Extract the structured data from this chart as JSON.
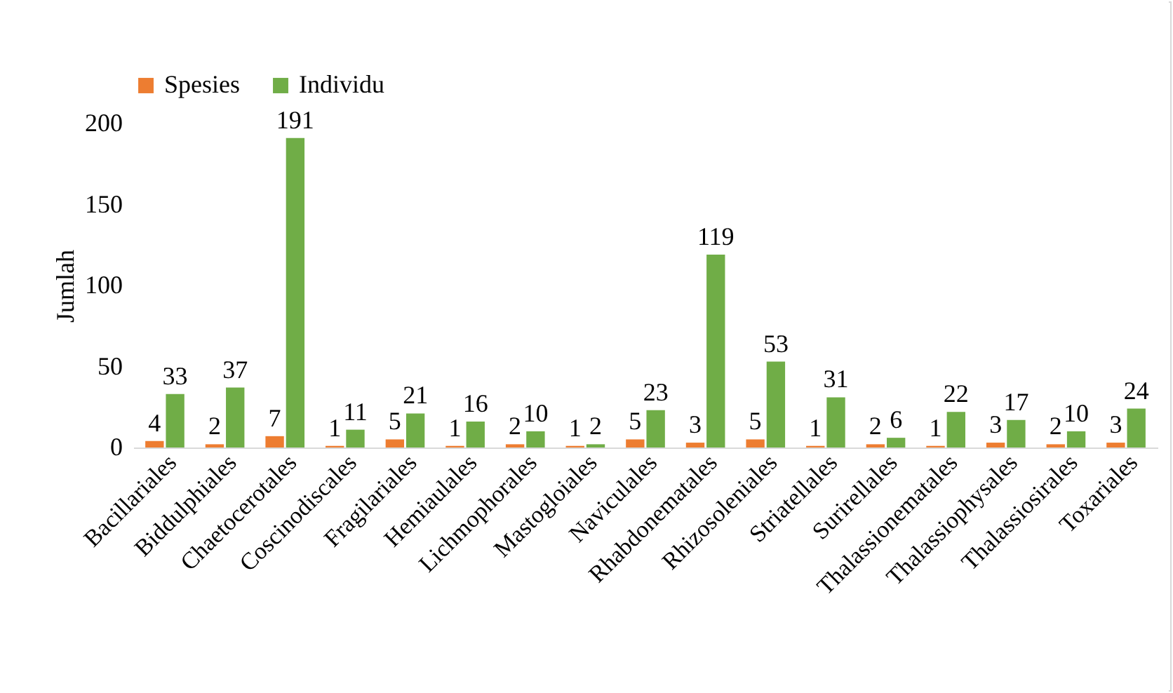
{
  "chart_data": {
    "type": "bar",
    "ylabel": "Jumlah",
    "categories": [
      "Bacillariales",
      "Biddulphiales",
      "Chaetocerotales",
      "Coscinodiscales",
      "Fragilariales",
      "Hemiaulales",
      "Lichmophorales",
      "Mastogloiales",
      "Naviculales",
      "Rhabdonematales",
      "Rhizosoleniales",
      "Striatellales",
      "Surirellales",
      "Thalassionematales",
      "Thalassiophysales",
      "Thalassiosirales",
      "Toxariales"
    ],
    "series": [
      {
        "name": "Spesies",
        "color": "#ed7d31",
        "values": [
          4,
          2,
          7,
          1,
          5,
          1,
          2,
          1,
          5,
          3,
          5,
          1,
          2,
          1,
          3,
          2,
          3
        ]
      },
      {
        "name": "Individu",
        "color": "#70ad47",
        "values": [
          33,
          37,
          191,
          11,
          21,
          16,
          10,
          2,
          23,
          119,
          53,
          31,
          6,
          22,
          17,
          10,
          24
        ]
      }
    ],
    "ylim": [
      0,
      200
    ],
    "yticks": [
      0,
      50,
      100,
      150,
      200
    ],
    "grid": false,
    "legend": "top",
    "data_labels": true
  }
}
